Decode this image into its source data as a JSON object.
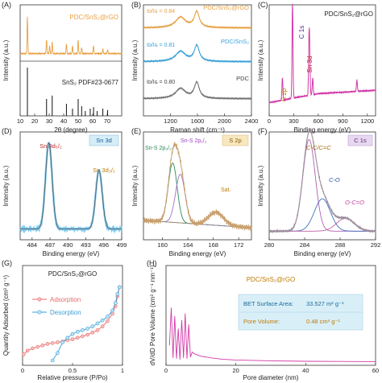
{
  "panels": {
    "A": {
      "letter": "(A)",
      "legend_top": "PDC/SnS₂@rGO",
      "legend_bottom": "SnS₂ PDF#23-0677",
      "xlabel": "2θ (degree)",
      "ylabel": "Intensity (a.u.)"
    },
    "B": {
      "letter": "(B)",
      "xlabel": "Raman shift (cm⁻¹)",
      "ylabel": "Intensity (a.u.)",
      "labels": [
        "PDC/SnS₂@rGO",
        "PDC/SnS₂",
        "PDC"
      ],
      "ratios": [
        "Iᴅ/Iɢ = 0.84",
        "Iᴅ/Iɢ = 0.81",
        "Iᴅ/Iɢ = 0.80"
      ]
    },
    "C": {
      "letter": "(C)",
      "title": "PDC/SnS₂@rGO",
      "xlabel": "Binding energy (eV)",
      "ylabel": "Intensity (a.u.)",
      "peaks": [
        "C 1s",
        "Sn 3d",
        "S 2p"
      ]
    },
    "D": {
      "letter": "(D)",
      "box": "Sn 3d",
      "xlabel": "Binding energy (eV)",
      "ylabel": "Intensity (a.u.)",
      "peaks": [
        "Sn 3d₅/₂",
        "Sn 3d₃/₂"
      ]
    },
    "E": {
      "letter": "(E)",
      "box": "S 2p",
      "xlabel": "Binding energy (eV)",
      "ylabel": "Intensity (a.u.)",
      "peaks": [
        "Sn-S 2p₃/₂",
        "Sn-S 2p₁/₂",
        "Sat."
      ]
    },
    "F": {
      "letter": "(F)",
      "box": "C 1s",
      "xlabel": "Binding energy (eV)",
      "ylabel": "Intensity (a.u.)",
      "peaks": [
        "C-C/C=C",
        "C-O",
        "O-C=O"
      ]
    },
    "G": {
      "letter": "(G)",
      "title": "PDC/SnS₂@rGO",
      "xlabel": "Relative pressure (P/Po)",
      "ylabel": "Quantity Adsorbed (cm³ g⁻¹)",
      "legend": [
        "Adsorption",
        "Desorption"
      ]
    },
    "H": {
      "letter": "(H)",
      "title": "PDC/SnS₂@rGO",
      "xlabel": "Pore diameter (nm)",
      "ylabel": "dV/dD Pore Volume (cm³ g⁻¹ nm⁻¹)",
      "bet_label": "BET Surface Area:",
      "bet_value": "33.527 m² g⁻¹",
      "pore_label": "Pore Volume:",
      "pore_value": "0.48 cm³ g⁻¹"
    }
  },
  "colors": {
    "orange": "#e8a040",
    "blue": "#3aa0d8",
    "gray": "#707070",
    "pink": "#d23aa8",
    "lightblue": "#7ec8ee",
    "red": "#e86a6a",
    "xps_fit": "#b06aa0",
    "green": "#2a8a5a"
  },
  "chart_data": [
    {
      "id": "A",
      "type": "line",
      "xlim": [
        10,
        80
      ],
      "xticks": [
        10,
        20,
        30,
        40,
        50,
        60,
        70
      ],
      "series": [
        {
          "name": "PDC/SnS₂@rGO",
          "peaks": [
            [
              15.0,
              0.95
            ],
            [
              28.2,
              0.35
            ],
            [
              30.3,
              0.2
            ],
            [
              32.1,
              0.3
            ],
            [
              41.9,
              0.25
            ],
            [
              46.1,
              0.2
            ],
            [
              50.0,
              0.35
            ],
            [
              52.4,
              0.15
            ],
            [
              60.6,
              0.2
            ],
            [
              67.0,
              0.12
            ],
            [
              70.3,
              0.1
            ]
          ]
        },
        {
          "name": "SnS₂ PDF#23-0677",
          "sticks": [
            [
              15.0,
              1.0
            ],
            [
              28.2,
              0.35
            ],
            [
              32.1,
              0.42
            ],
            [
              41.9,
              0.25
            ],
            [
              46.1,
              0.15
            ],
            [
              50.0,
              0.35
            ],
            [
              52.4,
              0.2
            ],
            [
              54.9,
              0.1
            ],
            [
              58.3,
              0.15
            ],
            [
              60.6,
              0.18
            ],
            [
              63.1,
              0.1
            ],
            [
              67.0,
              0.15
            ],
            [
              70.3,
              0.12
            ]
          ]
        }
      ]
    },
    {
      "id": "B",
      "type": "line",
      "xlim": [
        800,
        2400
      ],
      "xticks": [
        1200,
        1600,
        2000,
        2400
      ],
      "series": [
        {
          "name": "PDC/SnS₂@rGO",
          "id_ig": 0.84
        },
        {
          "name": "PDC/SnS₂",
          "id_ig": 0.81
        },
        {
          "name": "PDC",
          "id_ig": 0.8
        }
      ],
      "bands": {
        "D": 1350,
        "G": 1590
      }
    },
    {
      "id": "C",
      "type": "line",
      "xlim": [
        0,
        1300
      ],
      "xticks": [
        0,
        300,
        600,
        900,
        1200
      ],
      "peaks": [
        [
          162,
          0.2
        ],
        [
          285,
          0.85
        ],
        [
          487,
          0.45
        ],
        [
          495,
          0.3
        ],
        [
          532,
          0.15
        ],
        [
          1072,
          0.1
        ]
      ]
    },
    {
      "id": "D",
      "type": "line",
      "xlim": [
        482,
        499
      ],
      "xticks": [
        484,
        487,
        490,
        493,
        496,
        499
      ],
      "peaks": [
        [
          486.8,
          1.0
        ],
        [
          495.2,
          0.68
        ]
      ]
    },
    {
      "id": "E",
      "type": "line",
      "xlim": [
        157,
        174
      ],
      "xticks": [
        160,
        164,
        168,
        172
      ],
      "peaks": [
        [
          161.6,
          0.55
        ],
        [
          162.8,
          0.45
        ],
        [
          168.4,
          0.12
        ]
      ]
    },
    {
      "id": "F",
      "type": "line",
      "xlim": [
        280,
        292
      ],
      "xticks": [
        280,
        284,
        288,
        292
      ],
      "peaks": [
        [
          284.5,
          0.85
        ],
        [
          286.0,
          0.3
        ],
        [
          288.6,
          0.12
        ]
      ]
    },
    {
      "id": "G",
      "type": "line",
      "xlim": [
        0,
        1
      ],
      "xticks": [
        0.0,
        0.5,
        1.0
      ],
      "series": [
        {
          "name": "Adsorption",
          "x": [
            0.01,
            0.05,
            0.1,
            0.15,
            0.2,
            0.25,
            0.3,
            0.35,
            0.4,
            0.45,
            0.5,
            0.55,
            0.6,
            0.65,
            0.7,
            0.75,
            0.8,
            0.85,
            0.9,
            0.93,
            0.95,
            0.97
          ],
          "y": [
            0.08,
            0.13,
            0.16,
            0.18,
            0.2,
            0.22,
            0.23,
            0.24,
            0.25,
            0.27,
            0.28,
            0.3,
            0.32,
            0.34,
            0.37,
            0.4,
            0.45,
            0.52,
            0.62,
            0.72,
            0.85,
            0.97
          ]
        },
        {
          "name": "Desorption",
          "x": [
            0.97,
            0.95,
            0.93,
            0.9,
            0.85,
            0.8,
            0.75,
            0.7,
            0.65,
            0.6,
            0.55,
            0.5,
            0.45,
            0.4,
            0.35,
            0.3
          ],
          "y": [
            0.97,
            0.88,
            0.76,
            0.66,
            0.58,
            0.53,
            0.49,
            0.45,
            0.42,
            0.4,
            0.38,
            0.35,
            0.3,
            0.24,
            0.1,
            0.0
          ]
        }
      ]
    },
    {
      "id": "H",
      "type": "line",
      "xlim": [
        0,
        60
      ],
      "xticks": [
        0,
        20,
        40,
        60
      ],
      "x": [
        1.0,
        1.5,
        2.0,
        2.5,
        3.0,
        3.5,
        4.0,
        4.5,
        5.0,
        5.5,
        6.0,
        6.5,
        7.0,
        7.5,
        8.0,
        10.0,
        13.0,
        16.0,
        20.0,
        25.0,
        30.0,
        40.0,
        50.0,
        60.0
      ],
      "y": [
        0.2,
        0.65,
        0.05,
        0.55,
        0.04,
        0.4,
        0.03,
        0.5,
        0.05,
        0.58,
        0.04,
        0.45,
        0.06,
        0.12,
        0.1,
        0.07,
        0.05,
        0.035,
        0.025,
        0.02,
        0.015,
        0.01,
        0.008,
        0.006
      ]
    }
  ]
}
